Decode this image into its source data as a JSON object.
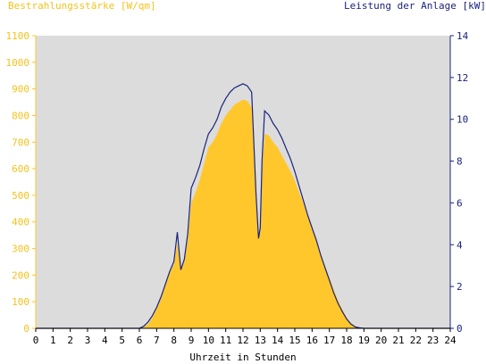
{
  "header": {
    "left_label": "Bestrahlungsstärke [W/qm]",
    "right_label": "Leistung der Anlage [kW]"
  },
  "chart_data": {
    "type": "area",
    "xlabel": "Uhrzeit in Stunden",
    "ylabel_left": "Bestrahlungsstärke [W/qm]",
    "ylabel_right": "Leistung der Anlage [kW]",
    "xlim": [
      0,
      24
    ],
    "ylim_left": [
      0,
      1100
    ],
    "ylim_right": [
      0,
      14
    ],
    "x_ticks": [
      "0",
      "1",
      "2",
      "3",
      "4",
      "5",
      "6",
      "7",
      "8",
      "9",
      "10",
      "11",
      "12",
      "13",
      "14",
      "15",
      "16",
      "17",
      "18",
      "19",
      "20",
      "21",
      "22",
      "23",
      "24"
    ],
    "y_ticks_left": [
      "0",
      "100",
      "200",
      "300",
      "400",
      "500",
      "600",
      "700",
      "800",
      "900",
      "1000",
      "1100"
    ],
    "y_ticks_right": [
      "0",
      "2",
      "4",
      "6",
      "8",
      "10",
      "12",
      "14"
    ],
    "grid": false,
    "colors": {
      "irradiance": "#ffc72c",
      "power": "#1a237e",
      "background": "#dcdcdc"
    },
    "series": [
      {
        "name": "Bestrahlungsstärke [W/qm]",
        "axis": "left",
        "style": "area",
        "x": [
          0,
          6.0,
          6.25,
          6.5,
          6.75,
          7.0,
          7.25,
          7.5,
          7.75,
          8.0,
          8.2,
          8.4,
          8.6,
          8.8,
          9.0,
          9.25,
          9.5,
          9.75,
          10.0,
          10.25,
          10.5,
          10.75,
          11.0,
          11.25,
          11.5,
          11.75,
          12.0,
          12.25,
          12.5,
          12.75,
          12.9,
          13.0,
          13.1,
          13.25,
          13.5,
          13.75,
          14.0,
          14.25,
          14.5,
          14.75,
          15.0,
          15.25,
          15.5,
          15.75,
          16.0,
          16.25,
          16.5,
          16.75,
          17.0,
          17.25,
          17.5,
          17.75,
          18.0,
          18.25,
          18.5,
          18.75,
          19.0,
          24
        ],
        "values": [
          0,
          0,
          5,
          15,
          40,
          75,
          110,
          165,
          210,
          240,
          320,
          225,
          250,
          330,
          470,
          510,
          560,
          620,
          680,
          700,
          730,
          770,
          800,
          820,
          840,
          850,
          860,
          855,
          830,
          480,
          350,
          380,
          600,
          730,
          725,
          700,
          680,
          650,
          620,
          590,
          555,
          510,
          470,
          420,
          370,
          330,
          280,
          235,
          190,
          145,
          105,
          70,
          40,
          20,
          8,
          2,
          0,
          0
        ]
      },
      {
        "name": "Leistung der Anlage [kW]",
        "axis": "right",
        "style": "line",
        "x": [
          0,
          6.0,
          6.25,
          6.5,
          6.75,
          7.0,
          7.25,
          7.5,
          7.75,
          8.0,
          8.2,
          8.4,
          8.6,
          8.8,
          9.0,
          9.25,
          9.5,
          9.75,
          10.0,
          10.25,
          10.5,
          10.75,
          11.0,
          11.25,
          11.5,
          11.75,
          12.0,
          12.25,
          12.5,
          12.75,
          12.9,
          13.0,
          13.1,
          13.25,
          13.5,
          13.75,
          14.0,
          14.25,
          14.5,
          14.75,
          15.0,
          15.25,
          15.5,
          15.75,
          16.0,
          16.25,
          16.5,
          16.75,
          17.0,
          17.25,
          17.5,
          17.75,
          18.0,
          18.25,
          18.5,
          18.75,
          19.0,
          24
        ],
        "values": [
          0,
          0,
          0.1,
          0.3,
          0.6,
          1.0,
          1.5,
          2.1,
          2.7,
          3.2,
          4.6,
          2.8,
          3.3,
          4.5,
          6.7,
          7.2,
          7.8,
          8.6,
          9.3,
          9.6,
          10.0,
          10.6,
          11.0,
          11.3,
          11.5,
          11.6,
          11.7,
          11.6,
          11.3,
          6.5,
          4.3,
          4.8,
          8.0,
          10.4,
          10.2,
          9.8,
          9.5,
          9.1,
          8.6,
          8.1,
          7.5,
          6.8,
          6.1,
          5.4,
          4.8,
          4.2,
          3.5,
          2.9,
          2.3,
          1.7,
          1.2,
          0.8,
          0.45,
          0.2,
          0.07,
          0.02,
          0,
          0
        ]
      }
    ]
  }
}
